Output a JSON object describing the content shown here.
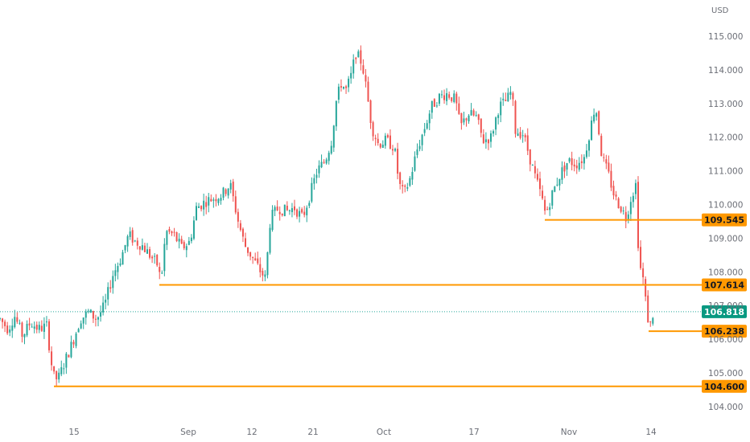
{
  "currency": "USD",
  "colors": {
    "up": "#26a69a",
    "down": "#ef5350",
    "level": "#ff9800",
    "current": "#089981",
    "axis_text": "#6b6e76",
    "dotted": "#26a69a"
  },
  "chart_data": {
    "type": "candlestick",
    "y_axis_ticks": [
      "115.000",
      "114.000",
      "113.000",
      "112.000",
      "111.000",
      "110.000",
      "109.000",
      "108.000",
      "107.000",
      "106.000",
      "105.000",
      "104.000"
    ],
    "x_axis_ticks": [
      "15",
      "Sep",
      "12",
      "21",
      "Oct",
      "17",
      "Nov",
      "14"
    ],
    "ylim": [
      103.5,
      115.5
    ],
    "current_price": "106.818",
    "levels": [
      {
        "label": "109.545",
        "value": 109.545,
        "from": "Oct 28"
      },
      {
        "label": "107.614",
        "value": 107.614,
        "from": "Aug 29"
      },
      {
        "label": "106.238",
        "value": 106.238,
        "from": "Nov 12"
      },
      {
        "label": "104.600",
        "value": 104.6,
        "from": "Aug 11"
      }
    ],
    "price_path": [
      {
        "t": 0,
        "p": 106.6
      },
      {
        "t": 10,
        "p": 106.3
      },
      {
        "t": 18,
        "p": 106.7
      },
      {
        "t": 28,
        "p": 106.1
      },
      {
        "t": 38,
        "p": 106.5
      },
      {
        "t": 48,
        "p": 106.3
      },
      {
        "t": 58,
        "p": 106.4
      },
      {
        "t": 66,
        "p": 104.9
      },
      {
        "t": 72,
        "p": 104.8
      },
      {
        "t": 80,
        "p": 105.3
      },
      {
        "t": 90,
        "p": 105.9
      },
      {
        "t": 100,
        "p": 106.6
      },
      {
        "t": 110,
        "p": 106.8
      },
      {
        "t": 120,
        "p": 106.6
      },
      {
        "t": 130,
        "p": 107.0
      },
      {
        "t": 140,
        "p": 107.9
      },
      {
        "t": 150,
        "p": 108.4
      },
      {
        "t": 160,
        "p": 109.1
      },
      {
        "t": 168,
        "p": 108.9
      },
      {
        "t": 176,
        "p": 108.8
      },
      {
        "t": 186,
        "p": 108.5
      },
      {
        "t": 196,
        "p": 108.2
      },
      {
        "t": 200,
        "p": 107.7
      },
      {
        "t": 206,
        "p": 109.2
      },
      {
        "t": 216,
        "p": 109.1
      },
      {
        "t": 226,
        "p": 108.7
      },
      {
        "t": 236,
        "p": 108.9
      },
      {
        "t": 244,
        "p": 109.9
      },
      {
        "t": 256,
        "p": 110.1
      },
      {
        "t": 266,
        "p": 110.2
      },
      {
        "t": 276,
        "p": 110.3
      },
      {
        "t": 286,
        "p": 110.6
      },
      {
        "t": 296,
        "p": 109.5
      },
      {
        "t": 304,
        "p": 108.8
      },
      {
        "t": 314,
        "p": 108.4
      },
      {
        "t": 324,
        "p": 108.0
      },
      {
        "t": 330,
        "p": 107.8
      },
      {
        "t": 336,
        "p": 109.6
      },
      {
        "t": 346,
        "p": 109.9
      },
      {
        "t": 356,
        "p": 109.8
      },
      {
        "t": 366,
        "p": 109.9
      },
      {
        "t": 376,
        "p": 109.6
      },
      {
        "t": 384,
        "p": 110.2
      },
      {
        "t": 394,
        "p": 111.0
      },
      {
        "t": 404,
        "p": 111.3
      },
      {
        "t": 412,
        "p": 111.9
      },
      {
        "t": 418,
        "p": 113.1
      },
      {
        "t": 424,
        "p": 113.6
      },
      {
        "t": 430,
        "p": 113.4
      },
      {
        "t": 436,
        "p": 113.8
      },
      {
        "t": 442,
        "p": 114.5
      },
      {
        "t": 450,
        "p": 114.2
      },
      {
        "t": 456,
        "p": 113.3
      },
      {
        "t": 462,
        "p": 112.3
      },
      {
        "t": 470,
        "p": 111.8
      },
      {
        "t": 480,
        "p": 111.9
      },
      {
        "t": 490,
        "p": 111.7
      },
      {
        "t": 496,
        "p": 110.6
      },
      {
        "t": 502,
        "p": 110.3
      },
      {
        "t": 510,
        "p": 110.8
      },
      {
        "t": 518,
        "p": 111.6
      },
      {
        "t": 528,
        "p": 112.3
      },
      {
        "t": 536,
        "p": 112.9
      },
      {
        "t": 546,
        "p": 113.2
      },
      {
        "t": 556,
        "p": 113.3
      },
      {
        "t": 566,
        "p": 113.1
      },
      {
        "t": 572,
        "p": 112.3
      },
      {
        "t": 582,
        "p": 112.7
      },
      {
        "t": 592,
        "p": 112.6
      },
      {
        "t": 600,
        "p": 111.9
      },
      {
        "t": 610,
        "p": 112.0
      },
      {
        "t": 620,
        "p": 112.9
      },
      {
        "t": 630,
        "p": 113.1
      },
      {
        "t": 636,
        "p": 113.4
      },
      {
        "t": 640,
        "p": 112.2
      },
      {
        "t": 650,
        "p": 112.1
      },
      {
        "t": 656,
        "p": 111.6
      },
      {
        "t": 664,
        "p": 110.9
      },
      {
        "t": 672,
        "p": 110.3
      },
      {
        "t": 678,
        "p": 109.7
      },
      {
        "t": 686,
        "p": 110.3
      },
      {
        "t": 696,
        "p": 110.9
      },
      {
        "t": 706,
        "p": 111.3
      },
      {
        "t": 716,
        "p": 111.2
      },
      {
        "t": 726,
        "p": 111.4
      },
      {
        "t": 734,
        "p": 112.3
      },
      {
        "t": 740,
        "p": 113.0
      },
      {
        "t": 748,
        "p": 111.4
      },
      {
        "t": 756,
        "p": 110.9
      },
      {
        "t": 764,
        "p": 110.2
      },
      {
        "t": 772,
        "p": 109.9
      },
      {
        "t": 778,
        "p": 109.6
      },
      {
        "t": 784,
        "p": 110.2
      },
      {
        "t": 790,
        "p": 110.6
      },
      {
        "t": 794,
        "p": 108.3
      },
      {
        "t": 800,
        "p": 107.7
      },
      {
        "t": 804,
        "p": 106.7
      },
      {
        "t": 808,
        "p": 106.4
      },
      {
        "t": 812,
        "p": 106.8
      }
    ]
  }
}
